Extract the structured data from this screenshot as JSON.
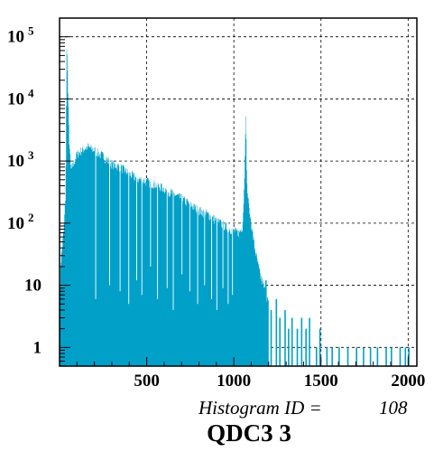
{
  "chart_data": {
    "type": "bar",
    "title": "QDC3 3",
    "annotation": {
      "label": "Histogram ID =",
      "value": "108"
    },
    "xlabel": "",
    "ylabel": "",
    "xlim": [
      0,
      2050
    ],
    "ylim": [
      0.5,
      200000
    ],
    "y_scale": "log",
    "grid": true,
    "bar_color": "#00a0c8",
    "x_ticks": [
      {
        "value": 500,
        "label": "500"
      },
      {
        "value": 1000,
        "label": "1000"
      },
      {
        "value": 1500,
        "label": "1500"
      },
      {
        "value": 2000,
        "label": "2000"
      }
    ],
    "y_ticks": [
      {
        "value": 1,
        "base": "1",
        "exp": ""
      },
      {
        "value": 10,
        "base": "10",
        "exp": ""
      },
      {
        "value": 100,
        "base": "10",
        "exp": "2"
      },
      {
        "value": 1000,
        "base": "10",
        "exp": "3"
      },
      {
        "value": 10000,
        "base": "10",
        "exp": "4"
      },
      {
        "value": 100000,
        "base": "10",
        "exp": "5"
      }
    ],
    "envelope": [
      [
        0,
        0.5
      ],
      [
        5,
        20
      ],
      [
        15,
        40
      ],
      [
        25,
        80
      ],
      [
        35,
        300
      ],
      [
        42,
        110000
      ],
      [
        48,
        15000
      ],
      [
        55,
        2500
      ],
      [
        65,
        700
      ],
      [
        80,
        900
      ],
      [
        100,
        1300
      ],
      [
        130,
        1500
      ],
      [
        160,
        1700
      ],
      [
        200,
        1500
      ],
      [
        250,
        1200
      ],
      [
        300,
        900
      ],
      [
        350,
        800
      ],
      [
        400,
        620
      ],
      [
        450,
        520
      ],
      [
        500,
        470
      ],
      [
        550,
        420
      ],
      [
        600,
        360
      ],
      [
        650,
        300
      ],
      [
        700,
        250
      ],
      [
        750,
        200
      ],
      [
        800,
        160
      ],
      [
        850,
        140
      ],
      [
        900,
        110
      ],
      [
        950,
        90
      ],
      [
        1000,
        75
      ],
      [
        1030,
        70
      ],
      [
        1050,
        90
      ],
      [
        1060,
        400
      ],
      [
        1068,
        6000
      ],
      [
        1076,
        400
      ],
      [
        1085,
        200
      ],
      [
        1100,
        100
      ],
      [
        1120,
        40
      ],
      [
        1150,
        15
      ],
      [
        1180,
        8
      ],
      [
        1200,
        5
      ],
      [
        1250,
        3
      ],
      [
        1300,
        2
      ],
      [
        1350,
        1.5
      ],
      [
        1400,
        1.2
      ],
      [
        1450,
        1
      ],
      [
        1500,
        0.8
      ],
      [
        1550,
        0.6
      ],
      [
        1600,
        0.5
      ],
      [
        2050,
        0.5
      ]
    ],
    "sparse_counts": [
      [
        1180,
        12
      ],
      [
        1210,
        4
      ],
      [
        1240,
        6
      ],
      [
        1260,
        3
      ],
      [
        1290,
        4
      ],
      [
        1310,
        2
      ],
      [
        1330,
        3
      ],
      [
        1360,
        2
      ],
      [
        1385,
        3
      ],
      [
        1410,
        2
      ],
      [
        1430,
        3
      ],
      [
        1470,
        1
      ],
      [
        1490,
        2
      ],
      [
        1530,
        1
      ],
      [
        1560,
        1
      ],
      [
        1600,
        1
      ],
      [
        1650,
        1
      ],
      [
        1700,
        1
      ],
      [
        1740,
        1
      ],
      [
        1780,
        1
      ],
      [
        1820,
        1
      ],
      [
        1870,
        1
      ],
      [
        1900,
        1
      ],
      [
        1950,
        1
      ],
      [
        1980,
        1
      ],
      [
        2000,
        1
      ]
    ],
    "dips": [
      [
        205,
        6
      ],
      [
        285,
        10
      ],
      [
        345,
        8
      ],
      [
        395,
        5
      ],
      [
        440,
        12
      ],
      [
        470,
        7
      ],
      [
        520,
        20
      ],
      [
        560,
        6
      ],
      [
        615,
        9
      ],
      [
        650,
        4
      ],
      [
        700,
        15
      ],
      [
        745,
        8
      ],
      [
        790,
        5
      ],
      [
        830,
        10
      ],
      [
        870,
        6
      ],
      [
        900,
        4
      ],
      [
        935,
        9
      ],
      [
        965,
        5
      ],
      [
        990,
        7
      ]
    ]
  }
}
